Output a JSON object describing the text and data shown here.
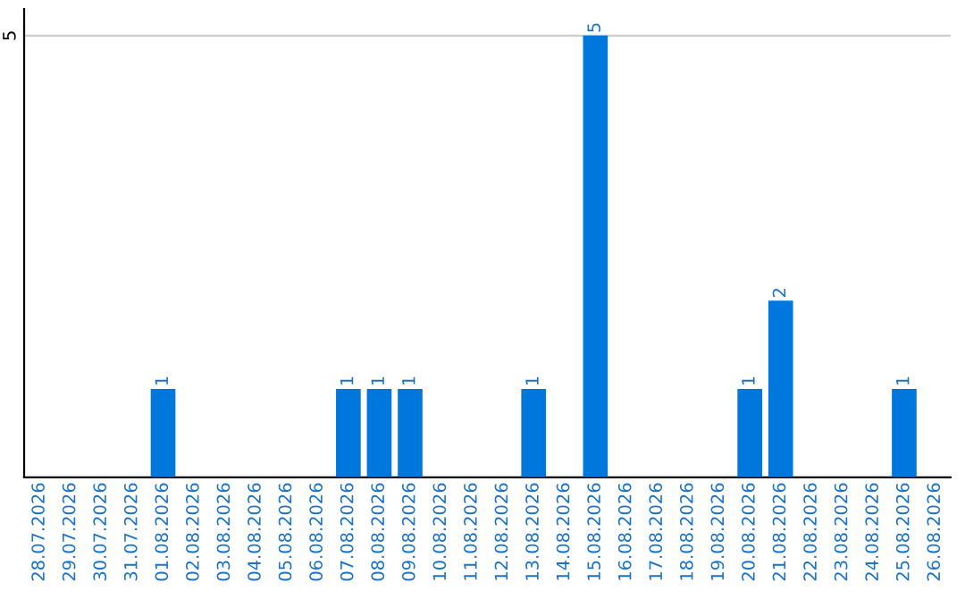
{
  "chart_data": {
    "type": "bar",
    "categories": [
      "28.07.2026",
      "29.07.2026",
      "30.07.2026",
      "31.07.2026",
      "01.08.2026",
      "02.08.2026",
      "03.08.2026",
      "04.08.2026",
      "05.08.2026",
      "06.08.2026",
      "07.08.2026",
      "08.08.2026",
      "09.08.2026",
      "10.08.2026",
      "11.08.2026",
      "12.08.2026",
      "13.08.2026",
      "14.08.2026",
      "15.08.2026",
      "16.08.2026",
      "17.08.2026",
      "18.08.2026",
      "19.08.2026",
      "20.08.2026",
      "21.08.2026",
      "22.08.2026",
      "23.08.2026",
      "24.08.2026",
      "25.08.2026",
      "26.08.2026"
    ],
    "values": [
      0,
      0,
      0,
      0,
      1,
      0,
      0,
      0,
      0,
      0,
      1,
      1,
      1,
      0,
      0,
      0,
      1,
      0,
      5,
      0,
      0,
      0,
      0,
      1,
      2,
      0,
      0,
      0,
      1,
      0
    ],
    "value_labels": [
      null,
      null,
      null,
      null,
      "1",
      null,
      null,
      null,
      null,
      null,
      "1",
      "1",
      "1",
      null,
      null,
      null,
      "1",
      null,
      "5",
      null,
      null,
      null,
      null,
      "1",
      "2",
      null,
      null,
      null,
      "1",
      null
    ],
    "color": "#0077dd",
    "ylim": [
      0,
      5.3
    ],
    "yticks": [
      5
    ],
    "grid": "y"
  }
}
